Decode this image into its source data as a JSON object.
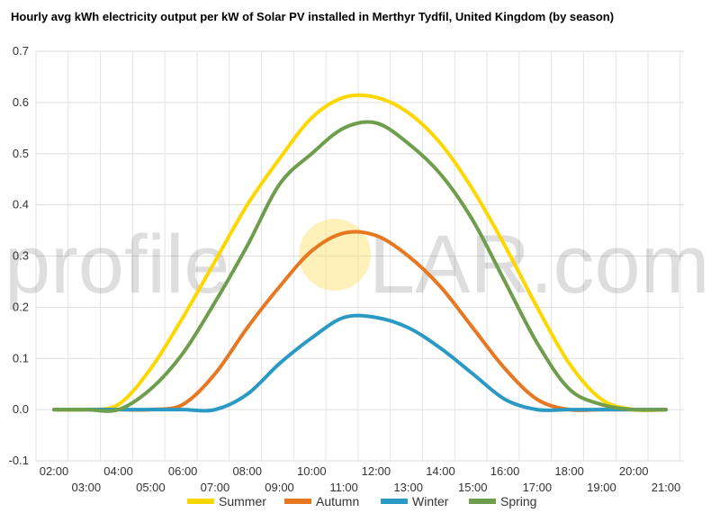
{
  "chart_data": {
    "type": "line",
    "title": "Hourly avg kWh electricity output per kW of Solar PV installed in Merthyr Tydfil, United Kingdom (by season)",
    "xlabel": "",
    "ylabel": "",
    "ylim": [
      -0.1,
      0.7
    ],
    "yticks": [
      "-0.1",
      "0.0",
      "0.1",
      "0.2",
      "0.3",
      "0.4",
      "0.5",
      "0.6",
      "0.7"
    ],
    "x": [
      "02:00",
      "03:00",
      "04:00",
      "05:00",
      "06:00",
      "07:00",
      "08:00",
      "09:00",
      "10:00",
      "11:00",
      "12:00",
      "13:00",
      "14:00",
      "15:00",
      "16:00",
      "17:00",
      "18:00",
      "19:00",
      "20:00",
      "21:00"
    ],
    "grid": true,
    "legend_position": "bottom",
    "series": [
      {
        "name": "Summer",
        "color": "#FFD700",
        "values": [
          0.0,
          0.0,
          0.01,
          0.08,
          0.18,
          0.29,
          0.4,
          0.49,
          0.57,
          0.61,
          0.61,
          0.58,
          0.52,
          0.43,
          0.32,
          0.2,
          0.09,
          0.02,
          0.0,
          0.0
        ]
      },
      {
        "name": "Autumn",
        "color": "#E87722",
        "values": [
          0.0,
          0.0,
          0.0,
          0.0,
          0.01,
          0.07,
          0.16,
          0.24,
          0.31,
          0.345,
          0.34,
          0.3,
          0.24,
          0.16,
          0.08,
          0.02,
          0.0,
          0.0,
          0.0,
          0.0
        ]
      },
      {
        "name": "Winter",
        "color": "#2A9AC4",
        "values": [
          0.0,
          0.0,
          0.0,
          0.0,
          0.0,
          0.0,
          0.03,
          0.09,
          0.14,
          0.18,
          0.18,
          0.16,
          0.12,
          0.07,
          0.02,
          0.0,
          0.0,
          0.0,
          0.0,
          0.0
        ]
      },
      {
        "name": "Spring",
        "color": "#6E9E4C",
        "values": [
          0.0,
          0.0,
          0.0,
          0.04,
          0.11,
          0.21,
          0.32,
          0.44,
          0.5,
          0.55,
          0.56,
          0.52,
          0.46,
          0.37,
          0.25,
          0.13,
          0.04,
          0.01,
          0.0,
          0.0
        ]
      }
    ]
  },
  "watermark": {
    "text_before": "profile",
    "text_after": "LAR.com",
    "sun_color": "#FFE066"
  }
}
